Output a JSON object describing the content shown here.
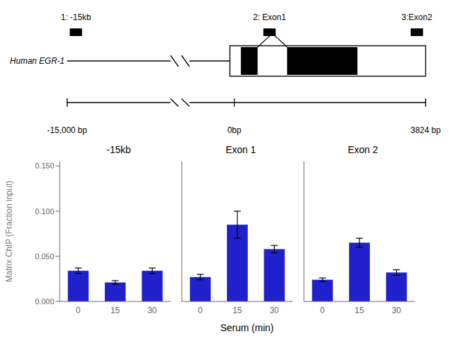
{
  "chart_data": [
    {
      "type": "bar",
      "title": "-15kb",
      "categories": [
        "0",
        "15",
        "30"
      ],
      "values": [
        0.034,
        0.021,
        0.034
      ],
      "errors": [
        0.003,
        0.002,
        0.003
      ],
      "color": "#2020CC",
      "ylabel": "Matrix ChIP (Fraction input)",
      "ylim": [
        0,
        0.155
      ],
      "yticks": [
        {
          "value": 0.0,
          "label": "0.000"
        },
        {
          "value": 0.05,
          "label": "0.050"
        },
        {
          "value": 0.1,
          "label": "0.100"
        },
        {
          "value": 0.15,
          "label": "0.150"
        }
      ],
      "grid": false,
      "annotations": [
        "Human EGR-1",
        "1: -15kb",
        "2: Exon1",
        "3:Exon2",
        "-15,000 bp",
        "0bp",
        "3824 bp"
      ]
    },
    {
      "type": "bar",
      "title": "Exon 1",
      "categories": [
        "0",
        "15",
        "30"
      ],
      "values": [
        0.027,
        0.085,
        0.058
      ],
      "errors": [
        0.003,
        0.015,
        0.004
      ],
      "color": "#2020CC",
      "xlabel": "Serum (min)",
      "ylim": [
        0,
        0.155
      ],
      "yticks": [
        0.0,
        0.05,
        0.1,
        0.15
      ],
      "grid": false,
      "tick_labels": "x"
    },
    {
      "type": "bar",
      "title": "Exon 2",
      "categories": [
        "0",
        "15",
        "30"
      ],
      "values": [
        0.024,
        0.065,
        0.032
      ],
      "errors": [
        0.002,
        0.005,
        0.003
      ],
      "color": "#2020CC",
      "ylim": [
        0,
        0.155
      ],
      "yticks": [
        0.0,
        0.05,
        0.1,
        0.15
      ],
      "grid": false,
      "tick_labels": "x"
    }
  ]
}
